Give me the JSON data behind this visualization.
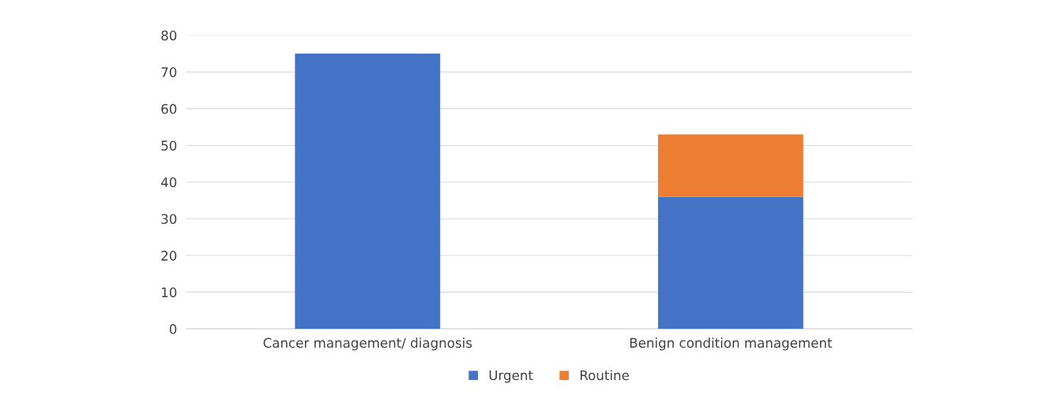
{
  "chart_data": {
    "type": "bar",
    "stacked": true,
    "categories": [
      "Cancer management/ diagnosis",
      "Benign condition management"
    ],
    "series": [
      {
        "name": "Urgent",
        "color": "#4472c4",
        "values": [
          75,
          36
        ]
      },
      {
        "name": "Routine",
        "color": "#ed7d31",
        "values": [
          0,
          17
        ]
      }
    ],
    "ylim": [
      0,
      80
    ],
    "yticks": [
      0,
      10,
      20,
      30,
      40,
      50,
      60,
      70,
      80
    ],
    "grid": "y",
    "legend": "bottom"
  }
}
